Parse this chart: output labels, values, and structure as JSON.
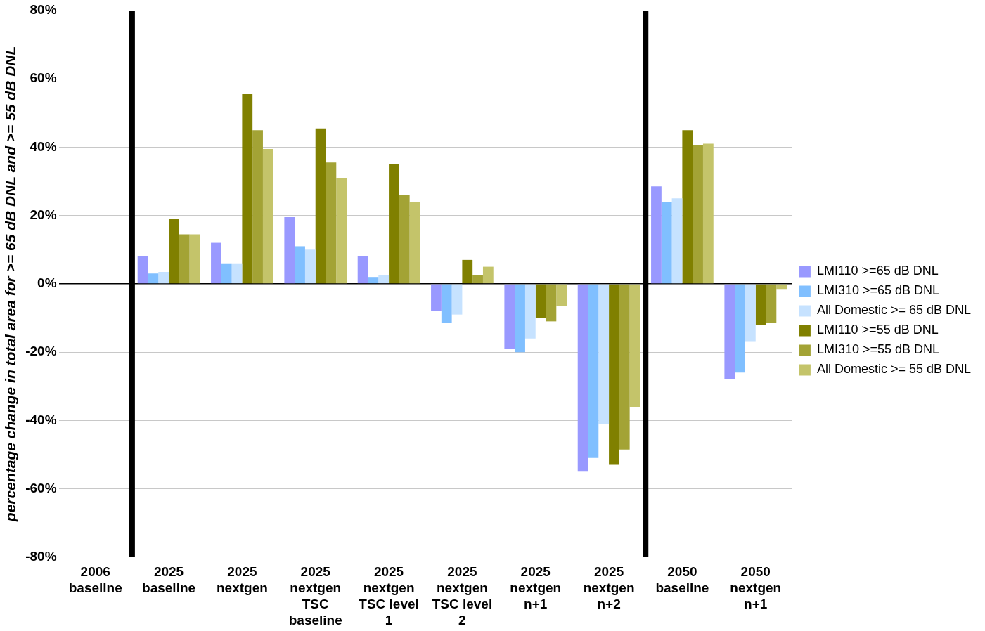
{
  "chart_data": {
    "type": "bar",
    "ylabel": "percentage change in total area for >= 65 dB DNL and >= 55 dB DNL",
    "categories": [
      "2006 baseline",
      "2025 baseline",
      "2025 nextgen",
      "2025 nextgen TSC baseline",
      "2025 nextgen TSC level 1",
      "2025 nextgen TSC level 2",
      "2025 nextgen n+1",
      "2025 nextgen n+2",
      "2050 baseline",
      "2050 nextgen n+1"
    ],
    "series": [
      {
        "name": "LMI110 >=65 dB DNL",
        "color": "#9999ff",
        "values": [
          null,
          8,
          12,
          19.5,
          8,
          -8,
          -19,
          -55,
          28.5,
          -28
        ]
      },
      {
        "name": "LMI310 >=65 dB DNL",
        "color": "#80bfff",
        "values": [
          null,
          3,
          6,
          11,
          2,
          -11.5,
          -20,
          -51,
          24,
          -26
        ]
      },
      {
        "name": "All Domestic >= 65 dB DNL",
        "color": "#c6e2ff",
        "values": [
          null,
          3.5,
          6,
          10,
          2.5,
          -9,
          -16,
          -41,
          25,
          -17
        ]
      },
      {
        "name": "LMI110 >=55 dB DNL",
        "color": "#808000",
        "values": [
          null,
          19,
          55.5,
          45.5,
          35,
          7,
          -10,
          -53,
          45,
          -12
        ]
      },
      {
        "name": "LMI310 >=55 dB DNL",
        "color": "#a3a335",
        "values": [
          null,
          14.5,
          45,
          35.5,
          26,
          2.5,
          -11,
          -48.5,
          40.5,
          -11.5
        ]
      },
      {
        "name": "All Domestic >= 55 dB DNL",
        "color": "#c4c46a",
        "values": [
          null,
          14.5,
          39.5,
          31,
          24,
          5,
          -6.5,
          -36,
          41,
          -1.5
        ]
      }
    ],
    "ylim": [
      -80,
      80
    ],
    "yticks": [
      {
        "value": -80,
        "label": "-80%"
      },
      {
        "value": -60,
        "label": "-60%"
      },
      {
        "value": -40,
        "label": "-40%"
      },
      {
        "value": -20,
        "label": "-20%"
      },
      {
        "value": 0,
        "label": "0%"
      },
      {
        "value": 20,
        "label": "20%"
      },
      {
        "value": 40,
        "label": "40%"
      },
      {
        "value": 60,
        "label": "60%"
      },
      {
        "value": 80,
        "label": "80%"
      }
    ],
    "grid": "y",
    "legend": "right"
  }
}
